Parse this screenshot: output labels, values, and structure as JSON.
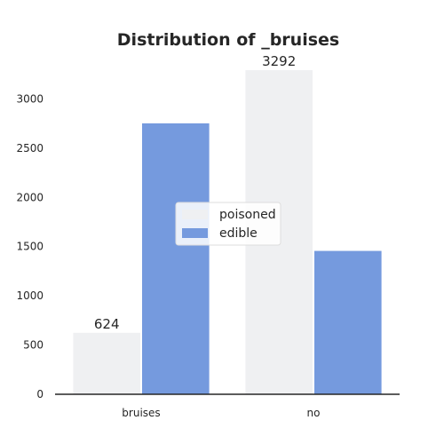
{
  "chart_data": {
    "type": "bar",
    "title": "Distribution of _bruises",
    "xlabel": "",
    "ylabel": "",
    "categories": [
      "bruises",
      "no"
    ],
    "series": [
      {
        "name": "poisoned",
        "values": [
          624,
          3292
        ],
        "color": "#eff0f2"
      },
      {
        "name": "edible",
        "values": [
          2752,
          1456
        ],
        "color": "#759ade"
      }
    ],
    "data_labels": [
      {
        "category": "bruises",
        "series": "poisoned",
        "text": "624"
      },
      {
        "category": "no",
        "series": "poisoned",
        "text": "3292"
      }
    ],
    "yticks": [
      0,
      500,
      1000,
      1500,
      2000,
      2500,
      3000
    ],
    "ylim": [
      0,
      3292
    ],
    "grid": false,
    "legend_position": "center"
  }
}
